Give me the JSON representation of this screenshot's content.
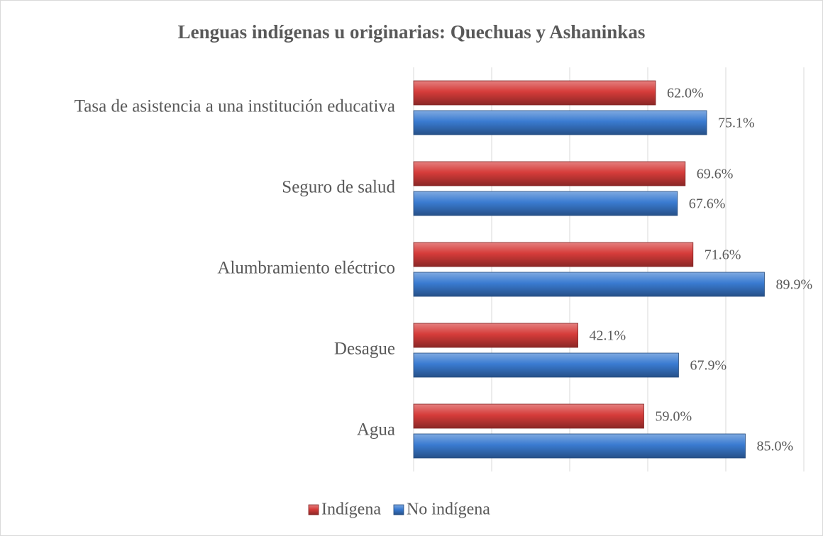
{
  "chart_data": {
    "type": "barh",
    "title": "Lenguas indígenas u originarias: Quechuas y Ashaninkas",
    "categories": [
      "Tasa de asistencia a una institución educativa",
      "Seguro de salud",
      "Alumbramiento eléctrico",
      "Desague",
      "Agua"
    ],
    "series": [
      {
        "name": "Indígena",
        "color": "#d63c3a",
        "values": [
          62.0,
          69.6,
          71.6,
          42.1,
          59.0
        ],
        "value_labels": [
          "62.0%",
          "69.6%",
          "71.6%",
          "42.1%",
          "59.0%"
        ]
      },
      {
        "name": "No indígena",
        "color": "#3a7bd1",
        "values": [
          75.1,
          67.6,
          89.9,
          67.9,
          85.0
        ],
        "value_labels": [
          "75.1%",
          "67.6%",
          "89.9%",
          "67.9%",
          "85.0%"
        ]
      }
    ],
    "xlim": [
      0,
      100
    ],
    "xticks": [
      0,
      20,
      40,
      60,
      80,
      100
    ],
    "grid": true,
    "legend": "bottom"
  }
}
